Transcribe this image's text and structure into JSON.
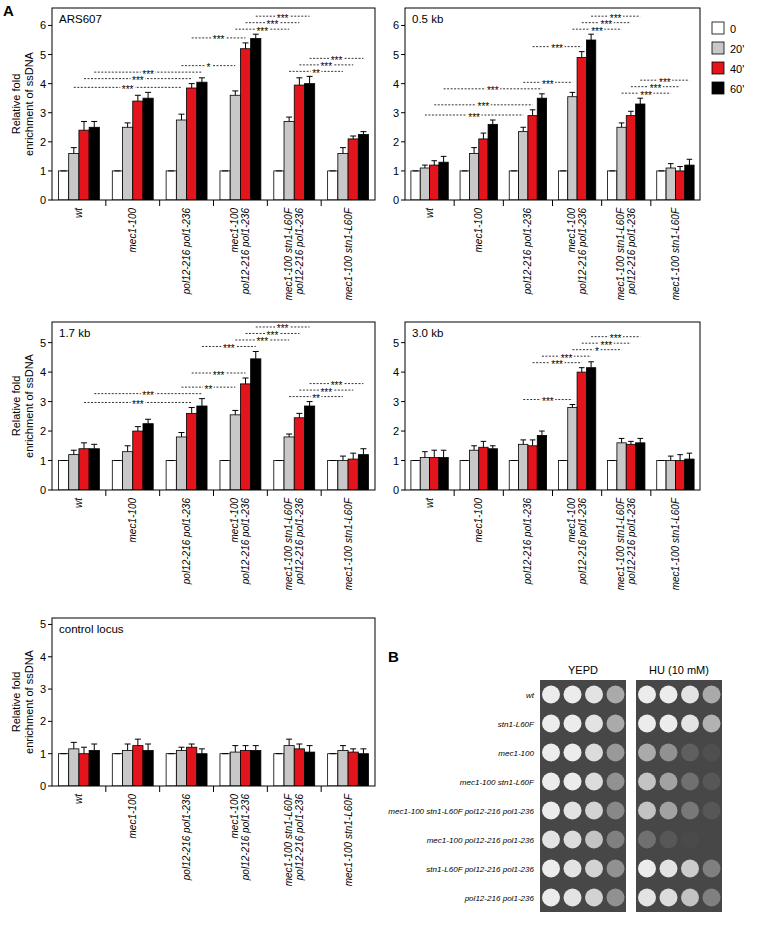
{
  "panel_labels": [
    "A",
    "B"
  ],
  "chart_data": [
    {
      "type": "bar",
      "title": "ARS607",
      "ylabel": "Relative fold enrichment of ssDNA",
      "categories": [
        "wt",
        "mec1-100",
        "pol12-216 pol1-236",
        "mec1-100 pol12-216 pol1-236",
        "mec1-100 stn1-L60F pol12-216 pol1-236",
        "mec1-100 stn1-L60F"
      ],
      "ylim": [
        0,
        6.6
      ],
      "yticks": [
        0,
        1,
        2,
        3,
        4,
        5,
        6
      ],
      "series": [
        {
          "color": "#ffffff",
          "values": [
            1,
            1,
            1,
            1,
            1,
            1
          ],
          "errors": [
            0,
            0,
            0,
            0,
            0,
            0
          ]
        },
        {
          "color": "#c8c8c8",
          "values": [
            1.6,
            2.5,
            2.75,
            3.6,
            2.7,
            1.6
          ],
          "errors": [
            0.2,
            0.15,
            0.2,
            0.15,
            0.15,
            0.2
          ]
        },
        {
          "color": "#e3141c",
          "values": [
            2.4,
            3.4,
            3.85,
            5.2,
            3.95,
            2.1
          ],
          "errors": [
            0.3,
            0.2,
            0.15,
            0.2,
            0.25,
            0.1
          ]
        },
        {
          "color": "#000000",
          "values": [
            2.5,
            3.5,
            4.05,
            5.55,
            4.0,
            2.25
          ],
          "errors": [
            0.2,
            0.2,
            0.15,
            0.15,
            0.25,
            0.1
          ]
        }
      ],
      "comparisons": [
        {
          "groups": [
            0,
            2
          ],
          "series": 1,
          "label": "***"
        },
        {
          "groups": [
            0,
            2
          ],
          "series": 2,
          "label": "***"
        },
        {
          "groups": [
            0,
            2
          ],
          "series": 3,
          "label": "***"
        },
        {
          "groups": [
            2,
            3
          ],
          "series": 1,
          "label": "*"
        },
        {
          "groups": [
            2,
            3
          ],
          "series": 2,
          "label": "***"
        },
        {
          "groups": [
            3,
            4
          ],
          "series": 1,
          "label": "***"
        },
        {
          "groups": [
            3,
            4
          ],
          "series": 2,
          "label": "***"
        },
        {
          "groups": [
            3,
            4
          ],
          "series": 3,
          "label": "***"
        },
        {
          "groups": [
            4,
            5
          ],
          "series": 1,
          "label": "**"
        },
        {
          "groups": [
            4,
            5
          ],
          "series": 2,
          "label": "***"
        },
        {
          "groups": [
            4,
            5
          ],
          "series": 3,
          "label": "***"
        }
      ]
    },
    {
      "type": "bar",
      "title": "0.5 kb",
      "legend": "right",
      "categories": [
        "wt",
        "mec1-100",
        "pol12-216 pol1-236",
        "mec1-100 pol12-216 pol1-236",
        "mec1-100 stn1-L60F pol12-216 pol1-236",
        "mec1-100 stn1-L60F"
      ],
      "ylim": [
        0,
        6.6
      ],
      "yticks": [
        0,
        1,
        2,
        3,
        4,
        5,
        6
      ],
      "series": [
        {
          "name": "0",
          "color": "#ffffff",
          "values": [
            1,
            1,
            1,
            1,
            1,
            1
          ],
          "errors": [
            0,
            0,
            0,
            0,
            0,
            0
          ]
        },
        {
          "name": "20'",
          "color": "#c8c8c8",
          "values": [
            1.1,
            1.6,
            2.35,
            3.55,
            2.5,
            1.1
          ],
          "errors": [
            0.1,
            0.2,
            0.15,
            0.15,
            0.15,
            0.15
          ]
        },
        {
          "name": "40'",
          "color": "#e3141c",
          "values": [
            1.2,
            2.1,
            2.9,
            4.9,
            2.9,
            1.0
          ],
          "errors": [
            0.15,
            0.2,
            0.2,
            0.2,
            0.15,
            0.15
          ]
        },
        {
          "name": "60'",
          "color": "#000000",
          "values": [
            1.3,
            2.6,
            3.5,
            5.5,
            3.3,
            1.2
          ],
          "errors": [
            0.2,
            0.15,
            0.15,
            0.2,
            0.2,
            0.2
          ]
        }
      ],
      "comparisons": [
        {
          "groups": [
            0,
            2
          ],
          "series": 1,
          "label": "***"
        },
        {
          "groups": [
            0,
            2
          ],
          "series": 2,
          "label": "***"
        },
        {
          "groups": [
            0,
            2
          ],
          "series": 3,
          "label": "***"
        },
        {
          "groups": [
            2,
            3
          ],
          "series": 1,
          "label": "***"
        },
        {
          "groups": [
            2,
            3
          ],
          "series": 2,
          "label": "***"
        },
        {
          "groups": [
            3,
            4
          ],
          "series": 1,
          "label": "***"
        },
        {
          "groups": [
            3,
            4
          ],
          "series": 2,
          "label": "***"
        },
        {
          "groups": [
            3,
            4
          ],
          "series": 3,
          "label": "***"
        },
        {
          "groups": [
            4,
            5
          ],
          "series": 1,
          "label": "***"
        },
        {
          "groups": [
            4,
            5
          ],
          "series": 2,
          "label": "***"
        },
        {
          "groups": [
            4,
            5
          ],
          "series": 3,
          "label": "***"
        }
      ]
    },
    {
      "type": "bar",
      "title": "1.7 kb",
      "ylabel": "Relative fold enrichment of ssDNA",
      "categories": [
        "wt",
        "mec1-100",
        "pol12-216 pol1-236",
        "mec1-100 pol12-216 pol1-236",
        "mec1-100 stn1-L60F pol12-216 pol1-236",
        "mec1-100 stn1-L60F"
      ],
      "ylim": [
        0,
        5.7
      ],
      "yticks": [
        0,
        1,
        2,
        3,
        4,
        5
      ],
      "series": [
        {
          "color": "#ffffff",
          "values": [
            1,
            1,
            1,
            1,
            1,
            1
          ],
          "errors": [
            0,
            0,
            0,
            0,
            0,
            0
          ]
        },
        {
          "color": "#c8c8c8",
          "values": [
            1.2,
            1.3,
            1.8,
            2.55,
            1.8,
            1.0
          ],
          "errors": [
            0.15,
            0.2,
            0.15,
            0.15,
            0.1,
            0.15
          ]
        },
        {
          "color": "#e3141c",
          "values": [
            1.4,
            2.0,
            2.6,
            3.6,
            2.45,
            1.05
          ],
          "errors": [
            0.2,
            0.15,
            0.2,
            0.2,
            0.15,
            0.2
          ]
        },
        {
          "color": "#000000",
          "values": [
            1.4,
            2.25,
            2.85,
            4.45,
            2.85,
            1.2
          ],
          "errors": [
            0.15,
            0.15,
            0.25,
            0.25,
            0.15,
            0.2
          ]
        }
      ],
      "comparisons": [
        {
          "groups": [
            0,
            2
          ],
          "series": 2,
          "label": "***"
        },
        {
          "groups": [
            0,
            2
          ],
          "series": 3,
          "label": "***"
        },
        {
          "groups": [
            2,
            3
          ],
          "series": 1,
          "label": "**"
        },
        {
          "groups": [
            2,
            3
          ],
          "series": 2,
          "label": "***"
        },
        {
          "groups": [
            2,
            3
          ],
          "series": 3,
          "label": "***"
        },
        {
          "groups": [
            3,
            4
          ],
          "series": 1,
          "label": "***"
        },
        {
          "groups": [
            3,
            4
          ],
          "series": 2,
          "label": "***"
        },
        {
          "groups": [
            3,
            4
          ],
          "series": 3,
          "label": "***"
        },
        {
          "groups": [
            4,
            5
          ],
          "series": 1,
          "label": "**"
        },
        {
          "groups": [
            4,
            5
          ],
          "series": 2,
          "label": "***"
        },
        {
          "groups": [
            4,
            5
          ],
          "series": 3,
          "label": "***"
        }
      ]
    },
    {
      "type": "bar",
      "title": "3.0 kb",
      "categories": [
        "wt",
        "mec1-100",
        "pol12-216 pol1-236",
        "mec1-100 pol12-216 pol1-236",
        "mec1-100 stn1-L60F pol12-216 pol1-236",
        "mec1-100 stn1-L60F"
      ],
      "ylim": [
        0,
        5.7
      ],
      "yticks": [
        0,
        1,
        2,
        3,
        4,
        5
      ],
      "series": [
        {
          "color": "#ffffff",
          "values": [
            1,
            1,
            1,
            1,
            1,
            1
          ],
          "errors": [
            0,
            0,
            0,
            0,
            0,
            0
          ]
        },
        {
          "color": "#c8c8c8",
          "values": [
            1.1,
            1.35,
            1.55,
            2.8,
            1.6,
            1.0
          ],
          "errors": [
            0.2,
            0.15,
            0.15,
            0.1,
            0.15,
            0.15
          ]
        },
        {
          "color": "#e3141c",
          "values": [
            1.1,
            1.45,
            1.5,
            4.0,
            1.55,
            1.0
          ],
          "errors": [
            0.25,
            0.2,
            0.2,
            0.15,
            0.1,
            0.2
          ]
        },
        {
          "color": "#000000",
          "values": [
            1.1,
            1.4,
            1.85,
            4.15,
            1.6,
            1.05
          ],
          "errors": [
            0.25,
            0.1,
            0.15,
            0.2,
            0.15,
            0.2
          ]
        }
      ],
      "comparisons": [
        {
          "groups": [
            2,
            3
          ],
          "series": 1,
          "label": "***"
        },
        {
          "groups": [
            2,
            3
          ],
          "series": 2,
          "label": "***"
        },
        {
          "groups": [
            2,
            3
          ],
          "series": 3,
          "label": "***"
        },
        {
          "groups": [
            3,
            4
          ],
          "series": 1,
          "label": "*"
        },
        {
          "groups": [
            3,
            4
          ],
          "series": 2,
          "label": "***"
        },
        {
          "groups": [
            3,
            4
          ],
          "series": 3,
          "label": "***"
        }
      ]
    },
    {
      "type": "bar",
      "title": "control locus",
      "ylabel": "Relative fold enrichment of ssDNA",
      "categories": [
        "wt",
        "mec1-100",
        "pol12-216 pol1-236",
        "mec1-100 pol12-216 pol1-236",
        "mec1-100 stn1-L60F pol12-216 pol1-236",
        "mec1-100 stn1-L60F"
      ],
      "ylim": [
        0,
        5.2
      ],
      "yticks": [
        0,
        1,
        2,
        3,
        4,
        5
      ],
      "series": [
        {
          "color": "#ffffff",
          "values": [
            1,
            1,
            1,
            1,
            1,
            1
          ],
          "errors": [
            0,
            0,
            0,
            0,
            0,
            0
          ]
        },
        {
          "color": "#c8c8c8",
          "values": [
            1.15,
            1.1,
            1.1,
            1.05,
            1.25,
            1.1
          ],
          "errors": [
            0.2,
            0.2,
            0.1,
            0.2,
            0.2,
            0.15
          ]
        },
        {
          "color": "#e3141c",
          "values": [
            1.0,
            1.25,
            1.2,
            1.1,
            1.15,
            1.05
          ],
          "errors": [
            0.2,
            0.2,
            0.1,
            0.15,
            0.15,
            0.1
          ]
        },
        {
          "color": "#000000",
          "values": [
            1.1,
            1.1,
            1.0,
            1.1,
            1.05,
            1.0
          ],
          "errors": [
            0.2,
            0.2,
            0.15,
            0.15,
            0.2,
            0.15
          ]
        }
      ],
      "comparisons": []
    }
  ],
  "spot_assay": {
    "columns": [
      "YEPD",
      "HU (10 mM)"
    ],
    "strains": [
      "wt",
      "stn1-L60F",
      "mec1-100",
      "mec1-100 stn1-L60F",
      "mec1-100 stn1-L60F pol12-216 pol1-236",
      "mec1-100 pol12-216 pol1-236",
      "stn1-L60F pol12-216 pol1-236",
      "pol12-216 pol1-236"
    ],
    "growth": [
      [
        [
          1,
          1,
          0.95,
          0.6
        ],
        [
          1,
          1,
          0.95,
          0.6
        ]
      ],
      [
        [
          1,
          1,
          0.95,
          0.6
        ],
        [
          1,
          1,
          0.95,
          0.65
        ]
      ],
      [
        [
          1,
          1,
          0.9,
          0.5
        ],
        [
          0.6,
          0.45,
          0.15,
          0.05
        ]
      ],
      [
        [
          1,
          1,
          0.9,
          0.45
        ],
        [
          0.75,
          0.55,
          0.25,
          0.1
        ]
      ],
      [
        [
          1,
          0.95,
          0.85,
          0.4
        ],
        [
          0.75,
          0.55,
          0.3,
          0.1
        ]
      ],
      [
        [
          0.95,
          0.9,
          0.75,
          0.35
        ],
        [
          0.25,
          0.1,
          0.02,
          0
        ]
      ],
      [
        [
          1,
          0.95,
          0.85,
          0.45
        ],
        [
          1,
          0.95,
          0.8,
          0.35
        ]
      ],
      [
        [
          1,
          0.95,
          0.85,
          0.45
        ],
        [
          0.95,
          0.9,
          0.75,
          0.35
        ]
      ]
    ]
  }
}
